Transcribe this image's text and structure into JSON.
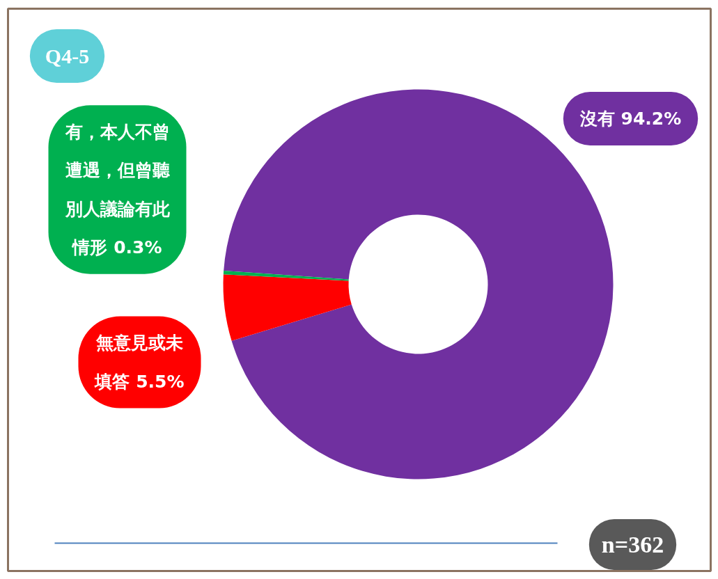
{
  "chart_data": {
    "type": "donut",
    "title": "Q4-5",
    "categories": [
      "沒有",
      "無意見或未填答",
      "有，本人不曾遭遇，但曾聽別人議論有此情形"
    ],
    "values": [
      94.2,
      5.5,
      0.3
    ],
    "value_labels": [
      "94.2%",
      "5.5%",
      "0.3%"
    ],
    "colors": [
      "#7030a0",
      "#ff0000",
      "#00b050"
    ],
    "annotations": [
      "n=362"
    ]
  }
}
